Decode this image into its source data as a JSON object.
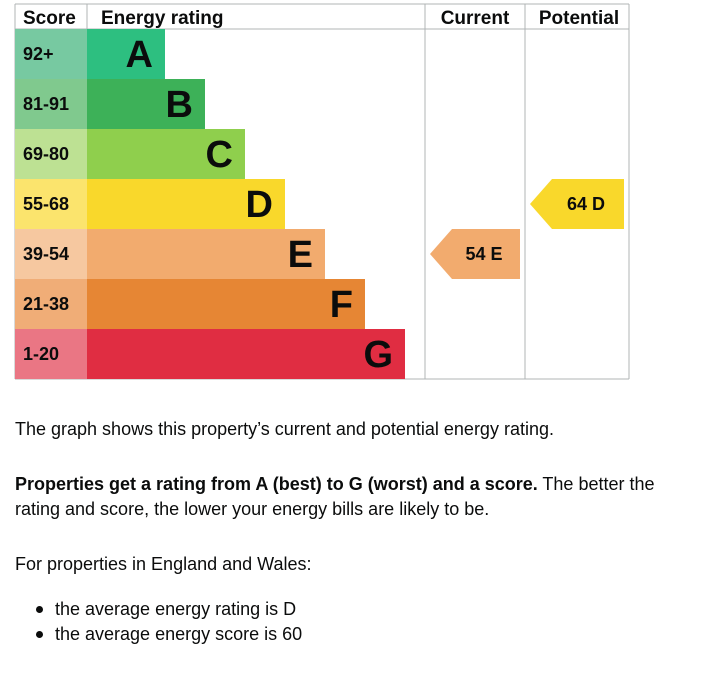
{
  "chart_data": {
    "type": "table",
    "headers": {
      "score": "Score",
      "rating": "Energy rating",
      "current": "Current",
      "potential": "Potential"
    },
    "bands": [
      {
        "letter": "A",
        "range": "92+",
        "bar_color": "#2dbf80",
        "score_color": "#77c9a1"
      },
      {
        "letter": "B",
        "range": "81-91",
        "bar_color": "#3db158",
        "score_color": "#80c98e"
      },
      {
        "letter": "C",
        "range": "69-80",
        "bar_color": "#8fcf4d",
        "score_color": "#bde193"
      },
      {
        "letter": "D",
        "range": "55-68",
        "bar_color": "#f9d82b",
        "score_color": "#fbe46d"
      },
      {
        "letter": "E",
        "range": "39-54",
        "bar_color": "#f2ab6e",
        "score_color": "#f6c8a0"
      },
      {
        "letter": "F",
        "range": "21-38",
        "bar_color": "#e68634",
        "score_color": "#f0ad77"
      },
      {
        "letter": "G",
        "range": "1-20",
        "bar_color": "#e02d42",
        "score_color": "#ea7684"
      }
    ],
    "current": {
      "score": 54,
      "letter": "E",
      "label": "54 E",
      "color": "#f2ab6e"
    },
    "potential": {
      "score": 64,
      "letter": "D",
      "label": "64 D",
      "color": "#f9d82b"
    },
    "colors": {
      "grid": "#b1b4b6",
      "text": "#0b0c0c"
    }
  },
  "description": {
    "graph_note": "The graph shows this property’s current and potential energy rating.",
    "rating_bold": "Properties get a rating from A (best) to G (worst) and a score.",
    "rating_rest": " The better the rating and score, the lower your energy bills are likely to be.",
    "england_wales": "For properties in England and Wales:",
    "averages": [
      "the average energy rating is D",
      "the average energy score is 60"
    ]
  }
}
